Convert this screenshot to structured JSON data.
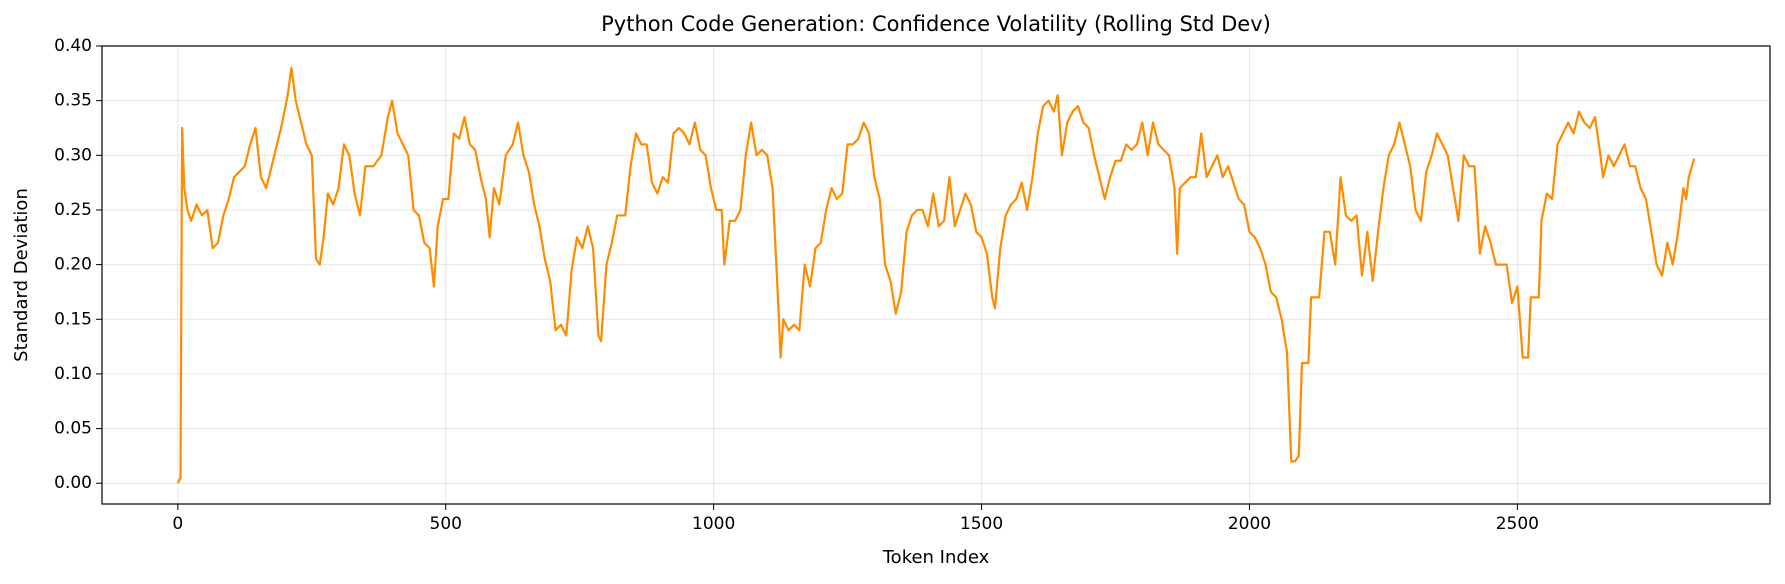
{
  "chart_data": {
    "type": "line",
    "title": "Python Code Generation: Confidence Volatility (Rolling Std Dev)",
    "x_label": "Token Index",
    "y_label": "Standard Deviation",
    "color": "#ff8c00",
    "grid": true,
    "xlim": [
      -141.5,
      2971.5
    ],
    "ylim": [
      -0.019,
      0.4
    ],
    "xticks": [
      0,
      500,
      1000,
      1500,
      2000,
      2500
    ],
    "yticks": [
      {
        "value": 0,
        "label": "0.00"
      },
      0.05,
      {
        "value": 0.1,
        "label": "0.10"
      },
      0.15,
      {
        "value": 0.2,
        "label": "0.20"
      },
      0.25,
      {
        "value": 0.3,
        "label": "0.30"
      },
      0.35,
      {
        "value": 0.4,
        "label": "0.40"
      }
    ],
    "x": [
      0,
      5,
      8,
      12,
      18,
      25,
      35,
      45,
      55,
      65,
      75,
      85,
      95,
      105,
      115,
      125,
      135,
      145,
      155,
      165,
      175,
      185,
      195,
      205,
      212,
      220,
      230,
      240,
      250,
      258,
      265,
      272,
      280,
      290,
      300,
      310,
      320,
      330,
      340,
      350,
      365,
      380,
      392,
      400,
      410,
      420,
      430,
      440,
      450,
      460,
      470,
      478,
      485,
      495,
      505,
      515,
      525,
      535,
      545,
      555,
      565,
      575,
      582,
      590,
      600,
      612,
      625,
      635,
      645,
      655,
      665,
      675,
      685,
      695,
      705,
      715,
      725,
      735,
      745,
      755,
      765,
      775,
      785,
      790,
      800,
      810,
      820,
      835,
      845,
      855,
      865,
      875,
      885,
      895,
      905,
      915,
      925,
      935,
      945,
      955,
      965,
      975,
      985,
      995,
      1005,
      1015,
      1020,
      1030,
      1040,
      1050,
      1060,
      1070,
      1080,
      1090,
      1100,
      1110,
      1120,
      1125,
      1130,
      1140,
      1150,
      1160,
      1170,
      1180,
      1190,
      1200,
      1210,
      1220,
      1230,
      1240,
      1250,
      1260,
      1270,
      1280,
      1290,
      1300,
      1310,
      1320,
      1330,
      1340,
      1350,
      1360,
      1370,
      1380,
      1390,
      1400,
      1410,
      1420,
      1430,
      1440,
      1450,
      1460,
      1470,
      1480,
      1490,
      1500,
      1510,
      1520,
      1525,
      1535,
      1545,
      1555,
      1565,
      1575,
      1585,
      1595,
      1605,
      1615,
      1625,
      1635,
      1642,
      1650,
      1660,
      1670,
      1680,
      1690,
      1700,
      1710,
      1720,
      1730,
      1740,
      1750,
      1760,
      1770,
      1780,
      1790,
      1800,
      1810,
      1820,
      1830,
      1840,
      1850,
      1860,
      1865,
      1870,
      1880,
      1890,
      1900,
      1910,
      1920,
      1930,
      1940,
      1950,
      1960,
      1970,
      1980,
      1990,
      2000,
      2010,
      2020,
      2030,
      2040,
      2050,
      2060,
      2070,
      2078,
      2085,
      2092,
      2098,
      2110,
      2115,
      2130,
      2140,
      2150,
      2160,
      2170,
      2180,
      2190,
      2200,
      2210,
      2220,
      2230,
      2240,
      2250,
      2260,
      2270,
      2280,
      2290,
      2300,
      2310,
      2320,
      2330,
      2340,
      2350,
      2360,
      2370,
      2380,
      2390,
      2400,
      2410,
      2420,
      2430,
      2440,
      2450,
      2460,
      2470,
      2480,
      2490,
      2500,
      2510,
      2520,
      2525,
      2540,
      2545,
      2555,
      2565,
      2575,
      2585,
      2595,
      2605,
      2615,
      2625,
      2635,
      2645,
      2655,
      2660,
      2670,
      2680,
      2690,
      2700,
      2710,
      2720,
      2730,
      2740,
      2750,
      2760,
      2770,
      2780,
      2790,
      2800,
      2810,
      2815,
      2820,
      2830
    ],
    "values": [
      0,
      0.005,
      0.325,
      0.27,
      0.25,
      0.24,
      0.255,
      0.245,
      0.25,
      0.215,
      0.22,
      0.245,
      0.26,
      0.28,
      0.285,
      0.29,
      0.31,
      0.325,
      0.28,
      0.27,
      0.29,
      0.31,
      0.33,
      0.355,
      0.38,
      0.35,
      0.33,
      0.31,
      0.3,
      0.205,
      0.2,
      0.225,
      0.265,
      0.255,
      0.27,
      0.31,
      0.3,
      0.265,
      0.245,
      0.29,
      0.29,
      0.3,
      0.335,
      0.35,
      0.32,
      0.31,
      0.3,
      0.25,
      0.245,
      0.22,
      0.215,
      0.18,
      0.235,
      0.26,
      0.26,
      0.32,
      0.315,
      0.335,
      0.31,
      0.305,
      0.28,
      0.26,
      0.225,
      0.27,
      0.255,
      0.3,
      0.31,
      0.33,
      0.3,
      0.285,
      0.255,
      0.235,
      0.205,
      0.185,
      0.14,
      0.145,
      0.135,
      0.195,
      0.225,
      0.215,
      0.235,
      0.215,
      0.135,
      0.13,
      0.2,
      0.22,
      0.245,
      0.245,
      0.29,
      0.32,
      0.31,
      0.31,
      0.275,
      0.265,
      0.28,
      0.275,
      0.32,
      0.325,
      0.32,
      0.31,
      0.33,
      0.305,
      0.3,
      0.27,
      0.25,
      0.25,
      0.2,
      0.24,
      0.24,
      0.25,
      0.3,
      0.33,
      0.3,
      0.305,
      0.3,
      0.27,
      0.17,
      0.115,
      0.15,
      0.14,
      0.145,
      0.14,
      0.2,
      0.18,
      0.215,
      0.22,
      0.25,
      0.27,
      0.26,
      0.265,
      0.31,
      0.31,
      0.315,
      0.33,
      0.32,
      0.28,
      0.26,
      0.2,
      0.185,
      0.155,
      0.175,
      0.23,
      0.245,
      0.25,
      0.25,
      0.235,
      0.265,
      0.235,
      0.24,
      0.28,
      0.235,
      0.25,
      0.265,
      0.255,
      0.23,
      0.225,
      0.21,
      0.17,
      0.16,
      0.215,
      0.245,
      0.255,
      0.26,
      0.275,
      0.25,
      0.28,
      0.32,
      0.345,
      0.35,
      0.34,
      0.355,
      0.3,
      0.33,
      0.34,
      0.345,
      0.33,
      0.325,
      0.3,
      0.28,
      0.26,
      0.28,
      0.295,
      0.295,
      0.31,
      0.305,
      0.31,
      0.33,
      0.3,
      0.33,
      0.31,
      0.305,
      0.3,
      0.27,
      0.21,
      0.27,
      0.275,
      0.28,
      0.28,
      0.32,
      0.28,
      0.29,
      0.3,
      0.28,
      0.29,
      0.275,
      0.26,
      0.255,
      0.23,
      0.225,
      0.215,
      0.2,
      0.175,
      0.17,
      0.15,
      0.12,
      0.02,
      0.02,
      0.025,
      0.11,
      0.11,
      0.17,
      0.17,
      0.23,
      0.23,
      0.2,
      0.28,
      0.245,
      0.24,
      0.245,
      0.19,
      0.23,
      0.185,
      0.23,
      0.27,
      0.3,
      0.31,
      0.33,
      0.31,
      0.29,
      0.25,
      0.24,
      0.285,
      0.3,
      0.32,
      0.31,
      0.3,
      0.27,
      0.24,
      0.3,
      0.29,
      0.29,
      0.21,
      0.235,
      0.22,
      0.2,
      0.2,
      0.2,
      0.165,
      0.18,
      0.115,
      0.115,
      0.17,
      0.17,
      0.24,
      0.265,
      0.26,
      0.31,
      0.32,
      0.33,
      0.32,
      0.34,
      0.33,
      0.325,
      0.335,
      0.3,
      0.28,
      0.3,
      0.29,
      0.3,
      0.31,
      0.29,
      0.29,
      0.27,
      0.26,
      0.23,
      0.2,
      0.19,
      0.22,
      0.2,
      0.23,
      0.27,
      0.26,
      0.28,
      0.297
    ]
  }
}
